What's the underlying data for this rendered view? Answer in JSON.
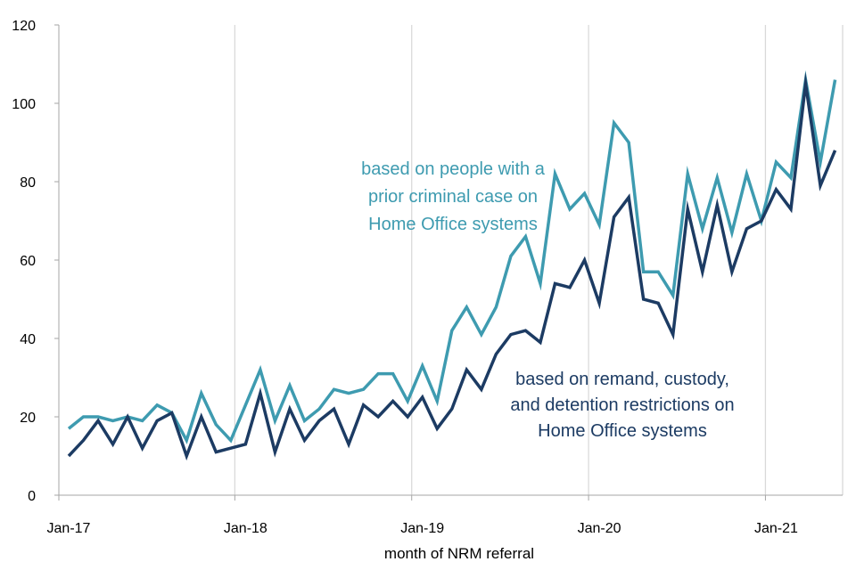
{
  "chart_data": {
    "type": "line",
    "title": "",
    "xlabel": "month of NRM referral",
    "ylabel": "",
    "ylim": [
      0,
      120
    ],
    "yticks": [
      0,
      20,
      40,
      60,
      80,
      100,
      120
    ],
    "x_tick_labels": [
      {
        "index": 0,
        "label": "Jan-17"
      },
      {
        "index": 12,
        "label": "Jan-18"
      },
      {
        "index": 24,
        "label": "Jan-19"
      },
      {
        "index": 36,
        "label": "Jan-20"
      },
      {
        "index": 48,
        "label": "Jan-21"
      }
    ],
    "grid": {
      "vertical": true,
      "horizontal": false
    },
    "x_count": 53,
    "series": [
      {
        "name": "prior criminal case",
        "color": "#3e9bb0",
        "annotation": [
          "based on people with a",
          "prior criminal case on",
          "Home Office systems"
        ],
        "values": [
          17,
          20,
          20,
          19,
          20,
          19,
          23,
          21,
          14,
          26,
          18,
          14,
          23,
          32,
          19,
          28,
          19,
          22,
          27,
          26,
          27,
          31,
          31,
          24,
          33,
          24,
          42,
          48,
          41,
          48,
          61,
          66,
          54,
          82,
          73,
          77,
          69,
          95,
          90,
          57,
          57,
          51,
          82,
          68,
          81,
          67,
          82,
          70,
          85,
          81,
          106,
          85,
          106
        ]
      },
      {
        "name": "remand, custody, and detention restrictions",
        "color": "#1c3b63",
        "annotation": [
          "based on remand, custody,",
          "and detention restrictions on",
          "Home Office systems"
        ],
        "values": [
          10,
          14,
          19,
          13,
          20,
          12,
          19,
          21,
          10,
          20,
          11,
          12,
          13,
          26,
          11,
          22,
          14,
          19,
          22,
          13,
          23,
          20,
          24,
          20,
          25,
          17,
          22,
          32,
          27,
          36,
          41,
          42,
          39,
          54,
          53,
          60,
          49,
          71,
          76,
          50,
          49,
          41,
          73,
          57,
          74,
          57,
          68,
          70,
          78,
          73,
          105,
          79,
          88
        ]
      }
    ]
  }
}
